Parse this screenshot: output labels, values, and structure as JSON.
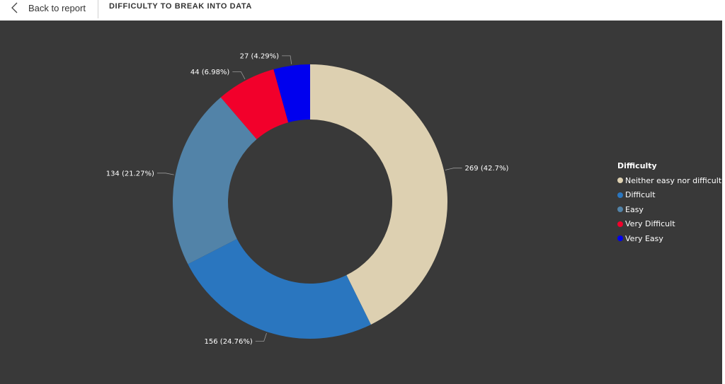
{
  "header": {
    "back_label": "Back to report",
    "title": "DIFFICULTY TO BREAK INTO DATA"
  },
  "colors": {
    "canvas_background": "#393939",
    "label_text": "#ffffff"
  },
  "chart_data": {
    "type": "pie",
    "variant": "donut",
    "legend_title": "Difficulty",
    "legend_position": "right",
    "categories": [
      "Neither easy nor difficult",
      "Difficult",
      "Easy",
      "Very Difficult",
      "Very Easy"
    ],
    "values": [
      269,
      156,
      134,
      44,
      27
    ],
    "percent_labels": [
      "42.7%",
      "24.76%",
      "21.27%",
      "6.98%",
      "4.29%"
    ],
    "data_labels": [
      "269 (42.7%)",
      "156 (24.76%)",
      "134 (21.27%)",
      "44 (6.98%)",
      "27 (4.29%)"
    ],
    "colors": [
      "#ddd0b1",
      "#2a76bf",
      "#5283a8",
      "#f2002b",
      "#0000ee"
    ]
  }
}
